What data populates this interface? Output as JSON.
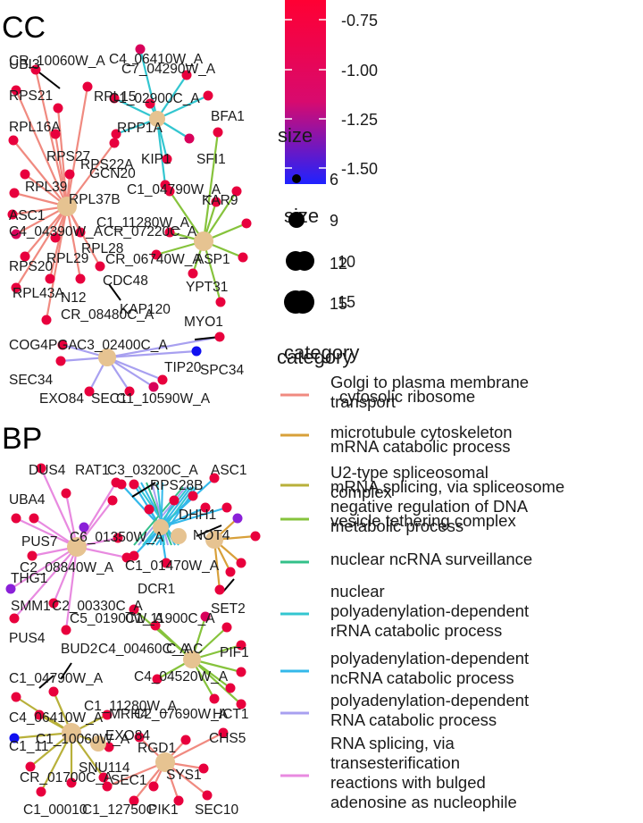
{
  "panels": {
    "cc_title": "CC",
    "bp_title": "BP"
  },
  "colorbar": {
    "ticks": [
      "-0.75",
      "-1.00",
      "-1.25",
      "-1.50"
    ],
    "high_color": "#ff0033",
    "low_color": "#1f22ff"
  },
  "size_legend": {
    "title_front": "size",
    "title_back": "size",
    "entries": [
      {
        "front": "6",
        "back": ""
      },
      {
        "front": "9",
        "back": ""
      },
      {
        "front": "12",
        "back": "10"
      },
      {
        "front": "15",
        "back": "15"
      }
    ]
  },
  "category_legend": {
    "title_front": "category",
    "title_back": "category",
    "items": [
      {
        "front": "Golgi to plasma membrane transport",
        "back": "cytosolic ribosome",
        "color": "#f08a80"
      },
      {
        "front": "microtubule cytoskeleton",
        "back": "mRNA catabolic process",
        "color": "#d8a03a"
      },
      {
        "front": "U2-type spliceosomal complex",
        "back": "mRNA splicing, via spliceosome",
        "color": "#b8b03a"
      },
      {
        "front": "negative regulation of DNA metabolic process",
        "back": "vesicle tethering complex",
        "color": "#86c33c"
      },
      {
        "front": "nuclear ncRNA surveillance",
        "back": "",
        "color": "#33c08a"
      },
      {
        "front": "nuclear polyadenylation-dependent rRNA catabolic process",
        "back": "",
        "color": "#33c6d0"
      },
      {
        "front": "polyadenylation-dependent ncRNA catabolic process",
        "back": "",
        "color": "#33b8ea"
      },
      {
        "front": "polyadenylation-dependent RNA catabolic process",
        "back": "",
        "color": "#a8a0f0"
      },
      {
        "front": "RNA splicing, via transesterification reactions with bulged adenosine as nucleophile",
        "back": "",
        "color": "#e88ae0"
      }
    ]
  },
  "cc_labels": [
    "CR_10060W_A",
    "UBI3",
    "C7_04290W_A",
    "C4_06410W_A",
    "RPS21",
    "RPL15",
    "C1_02900C_A",
    "RPP1A",
    "BFA1",
    "RPL16A",
    "RPS27",
    "RPS22A",
    "KIP1",
    "SFI1",
    "GCN20",
    "RPL39",
    "RPL37B",
    "C1_04790W_A",
    "KAR9",
    "ASC1",
    "C1_11280W_A",
    "C4_04390W_A",
    "CR_07220C_A",
    "RPL28",
    "CR_06740W_A",
    "ASP1",
    "RPS20",
    "RPL29",
    "YPT31",
    "CDC48",
    "RPL43A",
    "N12",
    "CR_08480C_A",
    "KAP120",
    "MYO1",
    "COG4",
    "PGA",
    "C3_02400C_A",
    "TIP20",
    "SPC34",
    "SEC34",
    "EXO84",
    "SEC1",
    "C1_10590W_A"
  ],
  "bp_labels": [
    "DUS4",
    "RAT1",
    "C3_03200C_A",
    "ASC1",
    "RPS28B",
    "UBA4",
    "DHH1",
    "PUS7",
    "C6_01350W_A",
    "NOT4",
    "THG1",
    "C2_08840W_A",
    "C1_01470W_A",
    "DCR1",
    "SMM1",
    "C2_00330C_A",
    "C5_01900W_A",
    "C1_11900C_A",
    "SET2",
    "PUS4",
    "BUD2",
    "C4_00460C_A",
    "C_AC",
    "PIF1",
    "C4_04520W_A",
    "C1_04790W_A",
    "C1_11280W_A",
    "MRH4",
    "C4_06410W_A",
    "C2_07690W_A",
    "HCT1",
    "C1_10060W_A",
    "C1_11",
    "EXO84",
    "RGD1",
    "CHS5",
    "SNU114",
    "CR_01700C_A",
    "SEC1",
    "SYS1",
    "C1_00010",
    "C1_12750C",
    "PIK1",
    "SEC10"
  ]
}
